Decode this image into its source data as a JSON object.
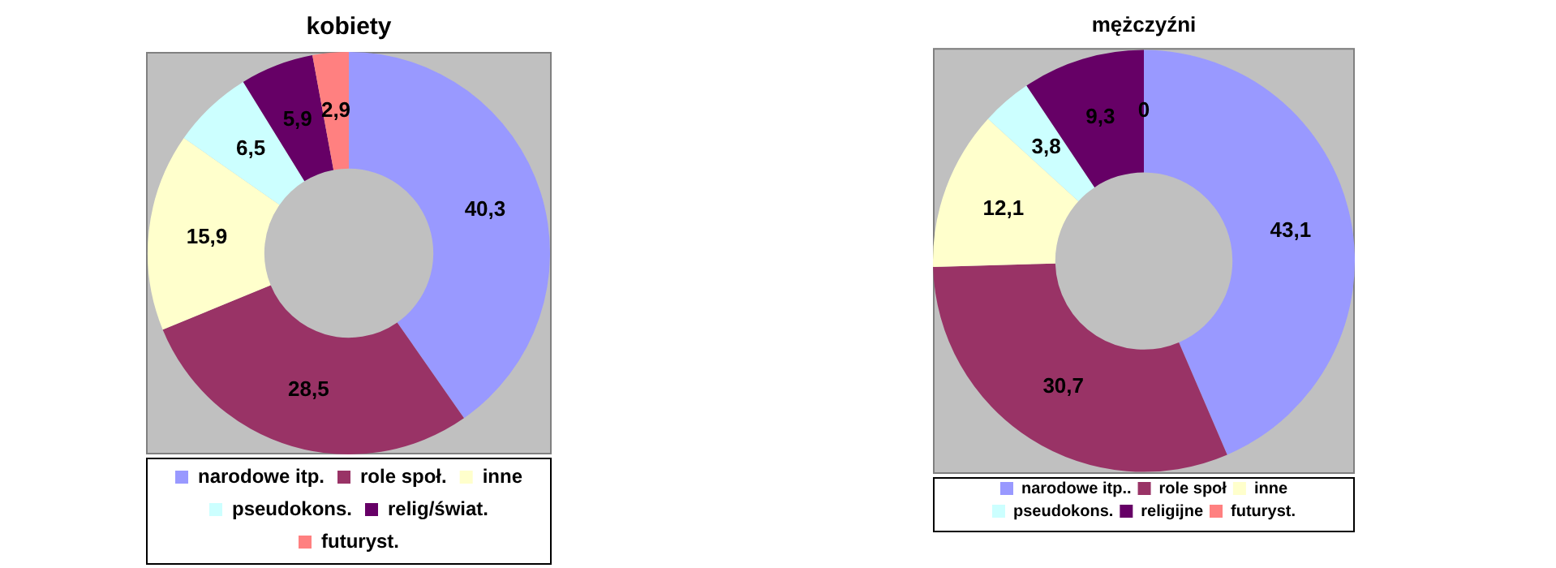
{
  "chart_data": [
    {
      "type": "donut",
      "title": "kobiety",
      "categories": [
        "narodowe itp.",
        "role społ.",
        "inne",
        "pseudokons.",
        "relig/świat.",
        "futuryst."
      ],
      "values": [
        40.3,
        28.5,
        15.9,
        6.5,
        5.9,
        2.9
      ],
      "value_labels": [
        "40,3",
        "28,5",
        "15,9",
        "6,5",
        "5,9",
        "2,9"
      ],
      "colors": [
        "#9999ff",
        "#993366",
        "#ffffcc",
        "#ccffff",
        "#660066",
        "#ff8080"
      ],
      "legend": "bottom"
    },
    {
      "type": "donut",
      "title": "mężczyźni",
      "categories": [
        "narodowe itp..",
        "role społ",
        "inne",
        "pseudokons.",
        "religijne",
        "futuryst."
      ],
      "values": [
        43.1,
        30.7,
        12.1,
        3.8,
        9.3,
        0
      ],
      "value_labels": [
        "43,1",
        "30,7",
        "12,1",
        "3,8",
        "9,3",
        "0"
      ],
      "colors": [
        "#9999ff",
        "#993366",
        "#ffffcc",
        "#ccffff",
        "#660066",
        "#ff8080"
      ],
      "legend": "bottom"
    }
  ]
}
